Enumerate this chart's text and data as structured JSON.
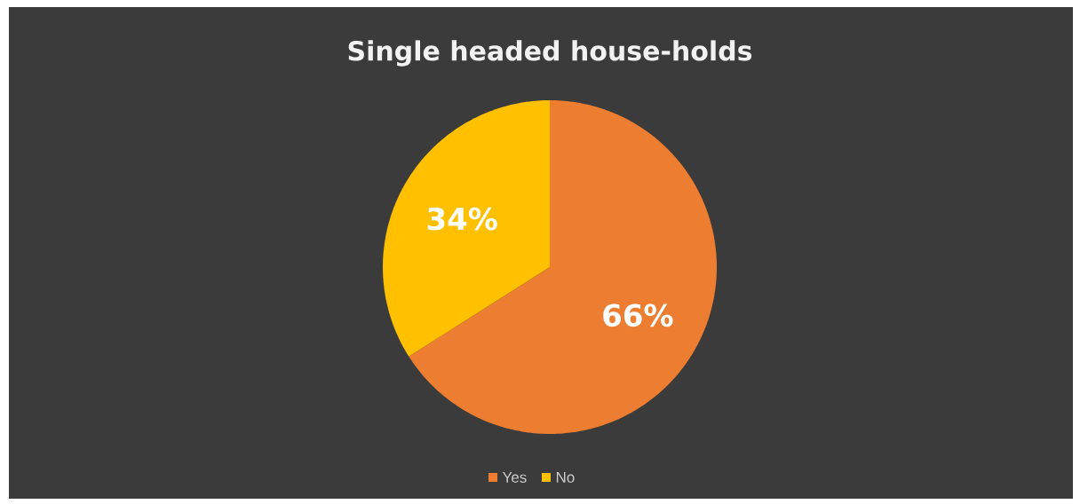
{
  "chart_data": {
    "type": "pie",
    "title": "Single headed house-holds",
    "categories": [
      "Yes",
      "No"
    ],
    "values": [
      66,
      34
    ],
    "colors": [
      "#ed7d31",
      "#ffc000"
    ],
    "value_labels": [
      "66%",
      "34%"
    ],
    "legend": "bottom"
  }
}
